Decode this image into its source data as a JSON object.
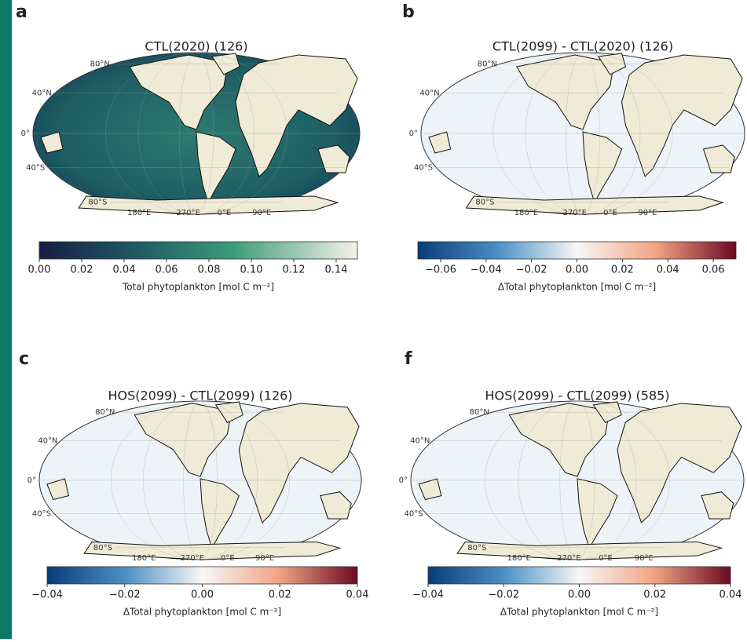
{
  "panels": [
    {
      "label": "a",
      "title": "CTL(2020) (126)",
      "lat_labels": [
        "80°N",
        "40°N",
        "0°",
        "40°S",
        "80°S"
      ],
      "lon_labels": [
        "180°E",
        "270°E",
        "0°E",
        "90°E"
      ],
      "colorbar": {
        "label": "Total phytoplankton [mol C m⁻²]",
        "lim": [
          0,
          0.15
        ],
        "ticks": [
          {
            "value": 0,
            "label": "0.00"
          },
          {
            "value": 0.02,
            "label": "0.02"
          },
          {
            "value": 0.04,
            "label": "0.04"
          },
          {
            "value": 0.06,
            "label": "0.06"
          },
          {
            "value": 0.08,
            "label": "0.08"
          },
          {
            "value": 0.1,
            "label": "0.10"
          },
          {
            "value": 0.12,
            "label": "0.12"
          },
          {
            "value": 0.14,
            "label": "0.14"
          }
        ]
      }
    },
    {
      "label": "b",
      "title": "CTL(2099) - CTL(2020) (126)",
      "lat_labels": [
        "80°N",
        "40°N",
        "0°",
        "40°S",
        "80°S"
      ],
      "lon_labels": [
        "180°E",
        "270°E",
        "0°E",
        "90°E"
      ],
      "colorbar": {
        "label": "ΔTotal phytoplankton [mol C m⁻²]",
        "lim": [
          -0.07,
          0.07
        ],
        "ticks": [
          {
            "value": -0.06,
            "label": "−0.06"
          },
          {
            "value": -0.04,
            "label": "−0.04"
          },
          {
            "value": -0.02,
            "label": "−0.02"
          },
          {
            "value": 0,
            "label": "0.00"
          },
          {
            "value": 0.02,
            "label": "0.02"
          },
          {
            "value": 0.04,
            "label": "0.04"
          },
          {
            "value": 0.06,
            "label": "0.06"
          }
        ]
      }
    },
    {
      "label": "c",
      "title": "HOS(2099) - CTL(2099) (126)",
      "lat_labels": [
        "80°N",
        "40°N",
        "0°",
        "40°S",
        "80°S"
      ],
      "lon_labels": [
        "180°E",
        "270°E",
        "0°E",
        "90°E"
      ],
      "colorbar": {
        "label": "ΔTotal phytoplankton [mol C m⁻²]",
        "lim": [
          -0.04,
          0.04
        ],
        "ticks": [
          {
            "value": -0.04,
            "label": "−0.04"
          },
          {
            "value": -0.02,
            "label": "−0.02"
          },
          {
            "value": 0,
            "label": "0.00"
          },
          {
            "value": 0.02,
            "label": "0.02"
          },
          {
            "value": 0.04,
            "label": "0.04"
          }
        ]
      }
    },
    {
      "label": "f",
      "title": "HOS(2099) - CTL(2099) (585)",
      "lat_labels": [
        "80°N",
        "40°N",
        "0°",
        "40°S",
        "80°S"
      ],
      "lon_labels": [
        "180°E",
        "270°E",
        "0°E",
        "90°E"
      ],
      "colorbar": {
        "label": "ΔTotal phytoplankton [mol C m⁻²]",
        "lim": [
          -0.04,
          0.04
        ],
        "ticks": [
          {
            "value": -0.04,
            "label": "−0.04"
          },
          {
            "value": -0.02,
            "label": "−0.02"
          },
          {
            "value": 0,
            "label": "0.00"
          },
          {
            "value": 0.02,
            "label": "0.02"
          },
          {
            "value": 0.04,
            "label": "0.04"
          }
        ]
      }
    }
  ]
}
